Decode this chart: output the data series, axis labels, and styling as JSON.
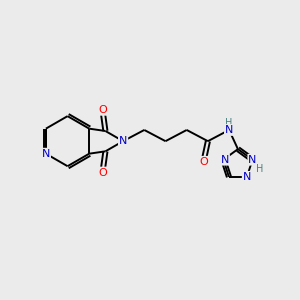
{
  "background_color": "#ebebeb",
  "atom_colors": {
    "C": "#000000",
    "N": "#0000cc",
    "O": "#ff0000",
    "H": "#4a8080"
  },
  "figsize": [
    3.0,
    3.0
  ],
  "dpi": 100
}
